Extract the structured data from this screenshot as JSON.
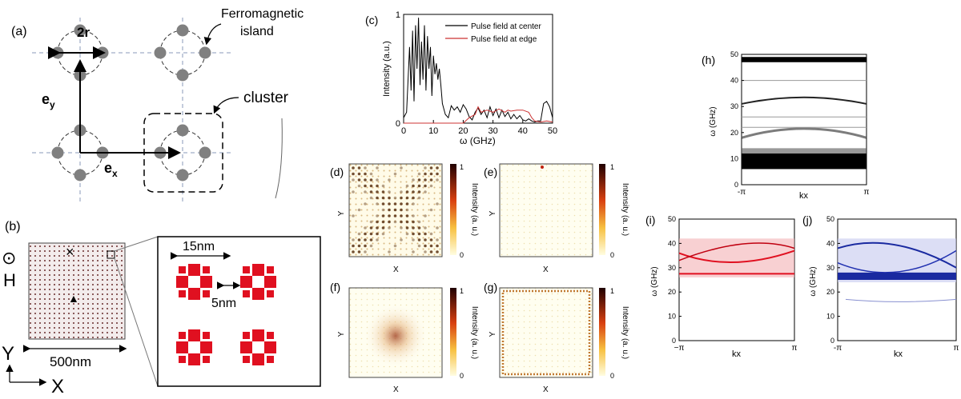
{
  "panel_labels": {
    "a": "(a)",
    "b": "(b)",
    "c": "(c)",
    "d": "(d)",
    "e": "(e)",
    "f": "(f)",
    "g": "(g)",
    "h": "(h)",
    "i": "(i)",
    "j": "(j)"
  },
  "panel_a": {
    "label_2r": "2r",
    "island_label_line1": "Ferromagnetic",
    "island_label_line2": "island",
    "cluster_label": "cluster",
    "ey_base": "e",
    "ey_sub": "y",
    "ex_base": "e",
    "ex_sub": "x"
  },
  "panel_b": {
    "field_label": "H",
    "field_symbol": "⊙",
    "y_axis": "Y",
    "x_axis": "X",
    "size_label": "500nm",
    "zoom_size_label": "15nm",
    "zoom_gap_label": "5nm",
    "cross_marker": "×",
    "triangle_marker": "▲"
  },
  "maps": {
    "xlabel": "X",
    "ylabel": "Y",
    "colorbar_label": "Intensity (a. u.)",
    "cbar_max": "1",
    "cbar_min": "0"
  },
  "colors": {
    "black_curve": "#000000",
    "red_curve": "#cc3333",
    "red_band": "#e01020",
    "blue_band": "#1a2aa0",
    "island": "#808080"
  },
  "chart_data": [
    {
      "id": "c",
      "type": "line",
      "xlabel": "ω (GHz)",
      "ylabel": "Intensity (a.u.)",
      "xlim": [
        0,
        50
      ],
      "ylim": [
        0,
        1
      ],
      "xticks": [
        "0",
        "10",
        "20",
        "30",
        "40",
        "50"
      ],
      "yticks": [
        "0",
        "1"
      ],
      "series": [
        {
          "name": "Pulse field at center",
          "color": "#000000",
          "x": [
            0,
            1,
            2,
            2.5,
            3,
            3.5,
            4,
            4.5,
            5,
            5.5,
            6,
            6.5,
            7,
            7.5,
            8,
            8.5,
            9,
            9.5,
            10,
            10.5,
            11,
            11.5,
            12,
            12.5,
            13,
            14,
            15,
            16,
            17,
            18,
            19,
            20,
            21,
            22,
            23,
            24,
            25,
            26,
            27,
            28,
            29,
            30,
            31,
            32,
            33,
            34,
            35,
            36,
            37,
            38,
            39,
            40,
            41,
            42,
            43,
            44,
            45,
            46,
            47,
            48,
            49,
            50
          ],
          "y": [
            0.05,
            0.1,
            0.7,
            0.3,
            0.85,
            0.2,
            0.9,
            0.5,
            0.97,
            0.35,
            0.75,
            0.4,
            0.9,
            0.3,
            0.8,
            0.5,
            0.7,
            0.25,
            0.62,
            0.45,
            0.55,
            0.4,
            0.5,
            0.35,
            0.18,
            0.08,
            0.05,
            0.16,
            0.12,
            0.15,
            0.1,
            0.17,
            0.13,
            0.06,
            0.03,
            0.1,
            0.14,
            0.08,
            0.12,
            0.05,
            0.15,
            0.07,
            0.13,
            0.05,
            0.12,
            0.06,
            0.1,
            0.04,
            0.08,
            0.04,
            0.07,
            0.03,
            0.02,
            0.04,
            0.02,
            0.01,
            0.02,
            0.02,
            0.18,
            0.2,
            0.15,
            0.05
          ]
        },
        {
          "name": "Pulse field at edge",
          "color": "#cc3333",
          "x": [
            0,
            10,
            15,
            20,
            22,
            24,
            25,
            26,
            28,
            30,
            32,
            34,
            35,
            36,
            38,
            40,
            42,
            43,
            44,
            46,
            48,
            50
          ],
          "y": [
            0,
            0,
            0,
            0,
            0.05,
            0.08,
            0.15,
            0.1,
            0.12,
            0.1,
            0.13,
            0.1,
            0.12,
            0.11,
            0.12,
            0.12,
            0.1,
            0.05,
            0.02,
            0.01,
            0.02,
            0.01
          ]
        }
      ]
    },
    {
      "id": "h",
      "type": "heatmap",
      "xlabel": "kx",
      "ylabel": "ω (GHz)",
      "ylim": [
        0,
        50
      ],
      "xticks": [
        "-π",
        "π"
      ],
      "yticks": [
        "0",
        "10",
        "20",
        "30",
        "40",
        "50"
      ],
      "bands": [
        {
          "name": "band-48",
          "omega": 48,
          "color": "#000000"
        },
        {
          "name": "band-31",
          "omega": 31,
          "color": "#222222"
        },
        {
          "name": "band-20",
          "omega": 20,
          "color": "#444444"
        },
        {
          "name": "band-9",
          "omega": 9,
          "color": "#000000"
        }
      ]
    },
    {
      "id": "i",
      "type": "heatmap",
      "xlabel": "kx",
      "ylabel": "ω (GHz)",
      "ylim": [
        0,
        50
      ],
      "xticks": [
        "−π",
        "π"
      ],
      "yticks": [
        "0",
        "10",
        "20",
        "30",
        "40",
        "50"
      ],
      "bands": [
        {
          "name": "band-upper",
          "omega_range": [
            36,
            42
          ],
          "color": "#e01020"
        },
        {
          "name": "band-lower",
          "omega_range": [
            27,
            29
          ],
          "color": "#e01020"
        }
      ]
    },
    {
      "id": "j",
      "type": "heatmap",
      "xlabel": "kx",
      "ylabel": "ω (GHz)",
      "ylim": [
        0,
        50
      ],
      "xticks": [
        "-π",
        "π"
      ],
      "yticks": [
        "0",
        "10",
        "20",
        "30",
        "40",
        "50"
      ],
      "bands": [
        {
          "name": "band-upper",
          "omega_range": [
            36,
            42
          ],
          "color": "#1a2aa0"
        },
        {
          "name": "band-lower",
          "omega_range": [
            25,
            28
          ],
          "color": "#1a2aa0"
        }
      ]
    }
  ]
}
